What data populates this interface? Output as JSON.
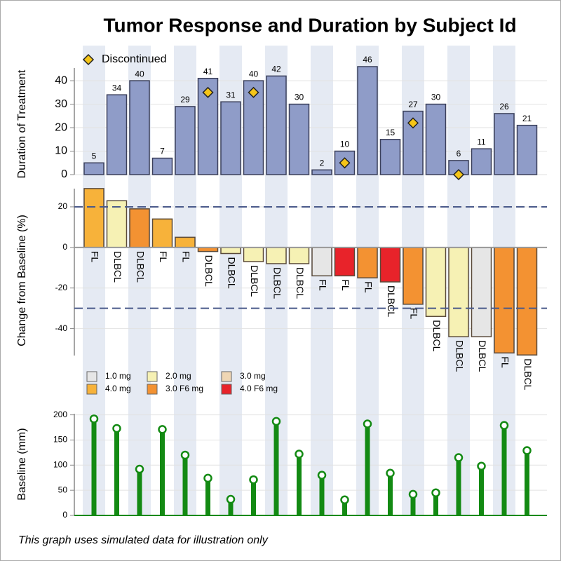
{
  "title": "Tumor Response and Duration by Subject Id",
  "footnote": "This graph uses simulated data for illustration only",
  "chart_data": [
    {
      "type": "bar",
      "ylabel": "Duration of Treatment",
      "values": [
        5,
        34,
        40,
        7,
        29,
        41,
        31,
        40,
        42,
        30,
        2,
        10,
        46,
        15,
        27,
        30,
        6,
        11,
        26,
        21
      ],
      "color": "#8f9cc8",
      "show_values": true,
      "grid": true,
      "markers": {
        "name": "Discontinued",
        "color": "#f5c518",
        "values": [
          null,
          null,
          null,
          null,
          null,
          35,
          null,
          35,
          null,
          null,
          null,
          5,
          null,
          null,
          22,
          null,
          0,
          null,
          null,
          null
        ]
      },
      "ylim": [
        0,
        46
      ],
      "yticks": [
        0,
        10,
        20,
        30,
        40
      ]
    },
    {
      "type": "bar",
      "ylabel": "Change from Baseline (%)",
      "values": [
        29,
        23,
        19,
        14,
        5,
        -2,
        -3,
        -7,
        -8,
        -8,
        -14,
        -14,
        -15,
        -17,
        -28,
        -34,
        -44,
        -44,
        -52,
        -53
      ],
      "labels": [
        "FL",
        "DLBCL",
        "DLBCL",
        "FL",
        "FL",
        "DLBCL",
        "DLBCL",
        "DLBCL",
        "DLBCL",
        "DLBCL",
        "FL",
        "FL",
        "FL",
        "DLBCL",
        "FL",
        "DLBCL",
        "DLBCL",
        "DLBCL",
        "FL",
        "DLBCL"
      ],
      "doses": [
        "4.0 mg",
        "2.0 mg",
        "3.0 F6 mg",
        "4.0 mg",
        "4.0 mg",
        "3.0 F6 mg",
        "2.0 mg",
        "2.0 mg",
        "2.0 mg",
        "2.0 mg",
        "1.0 mg",
        "4.0 F6 mg",
        "3.0 F6 mg",
        "4.0 F6 mg",
        "3.0 F6 mg",
        "2.0 mg",
        "2.0 mg",
        "1.0 mg",
        "3.0 F6 mg",
        "3.0 F6 mg"
      ],
      "legend": [
        {
          "name": "1.0 mg",
          "color": "#e6e6e6"
        },
        {
          "name": "2.0 mg",
          "color": "#f6f1b4"
        },
        {
          "name": "3.0 mg",
          "color": "#efd6b4"
        },
        {
          "name": "4.0 mg",
          "color": "#f7b23a"
        },
        {
          "name": "3.0 F6 mg",
          "color": "#f39232"
        },
        {
          "name": "4.0 F6 mg",
          "color": "#e8232a"
        }
      ],
      "reference_lines": [
        20,
        -30
      ],
      "grid": true,
      "ylim": [
        -55,
        30
      ],
      "yticks": [
        -40,
        -20,
        0,
        20
      ]
    },
    {
      "type": "needle",
      "ylabel": "Baseline (mm)",
      "values": [
        192,
        173,
        92,
        171,
        120,
        74,
        32,
        71,
        187,
        122,
        80,
        31,
        182,
        84,
        42,
        45,
        115,
        98,
        179,
        129
      ],
      "color": "#138a13",
      "grid": true,
      "ylim": [
        0,
        205
      ],
      "yticks": [
        0,
        50,
        100,
        150,
        200
      ]
    }
  ]
}
